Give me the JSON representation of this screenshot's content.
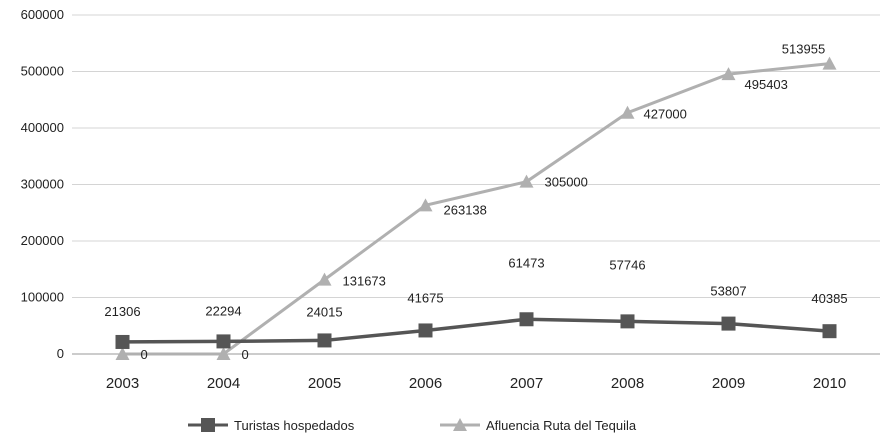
{
  "chart_data": {
    "type": "line",
    "categories": [
      "2003",
      "2004",
      "2005",
      "2006",
      "2007",
      "2008",
      "2009",
      "2010"
    ],
    "ylim": [
      0,
      600000
    ],
    "yticks": [
      0,
      100000,
      200000,
      300000,
      400000,
      500000,
      600000
    ],
    "ytick_labels": [
      "0",
      "100000",
      "200000",
      "300000",
      "400000",
      "500000",
      "600000"
    ],
    "grid": true,
    "legend_position": "bottom",
    "series": [
      {
        "name": "Turistas hospedados",
        "marker": "square",
        "color": "#555555",
        "values": [
          21306,
          22294,
          24015,
          41675,
          61473,
          57746,
          53807,
          40385
        ],
        "labels": [
          "21306",
          "22294",
          "24015",
          "41675",
          "61473",
          "57746",
          "53807",
          "40385"
        ]
      },
      {
        "name": "Afluencia Ruta del Tequila",
        "marker": "triangle",
        "color": "#b0b0b0",
        "values": [
          0,
          0,
          131673,
          263138,
          305000,
          427000,
          495403,
          513955
        ],
        "labels": [
          "0",
          "0",
          "131673",
          "263138",
          "305000",
          "427000",
          "495403",
          "513955"
        ]
      }
    ]
  }
}
